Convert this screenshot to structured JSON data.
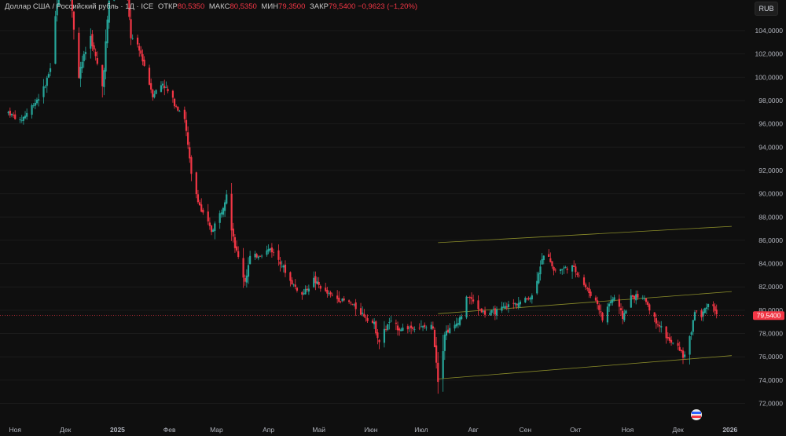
{
  "header": {
    "symbol": "Доллар США / Российский рубль · 1Д · ICE",
    "open_label": "ОТКР",
    "open_value": "80,5350",
    "high_label": "МАКС",
    "high_value": "80,5350",
    "low_label": "МИН",
    "low_value": "79,3500",
    "close_label": "ЗАКР",
    "close_value": "79,5400",
    "change": "−0,9623 (−1,20%)"
  },
  "currency_button": "RUB",
  "price_tag": "79,5400",
  "colors": {
    "up": "#26a69a",
    "down": "#f23645",
    "background": "#0f0f0f",
    "channel": "#8b8d2a"
  },
  "chart_data": {
    "type": "candlestick",
    "ylim": [
      71,
      105.5
    ],
    "y_ticks": [
      "72,0000",
      "74,0000",
      "76,0000",
      "78,0000",
      "80,0000",
      "82,0000",
      "84,0000",
      "86,0000",
      "88,0000",
      "90,0000",
      "92,0000",
      "94,0000",
      "96,0000",
      "98,0000",
      "100,0000",
      "102,0000",
      "104,0000"
    ],
    "x_ticks": [
      "Ноя",
      "Дек",
      "2025",
      "Фев",
      "Мар",
      "Апр",
      "Май",
      "Июн",
      "Июл",
      "Авг",
      "Сен",
      "Окт",
      "Ноя",
      "Дек",
      "2026"
    ],
    "last_price": 79.54,
    "close_path": [
      {
        "d": "2024-10-28",
        "c": 97.0
      },
      {
        "d": "2024-11-04",
        "c": 96.2
      },
      {
        "d": "2024-11-11",
        "c": 97.5
      },
      {
        "d": "2024-11-18",
        "c": 98.9
      },
      {
        "d": "2024-11-22",
        "c": 100.8
      },
      {
        "d": "2024-11-27",
        "c": 107.5
      },
      {
        "d": "2024-12-04",
        "c": 106.8
      },
      {
        "d": "2024-12-09",
        "c": 100.5
      },
      {
        "d": "2024-12-16",
        "c": 103.5
      },
      {
        "d": "2024-12-23",
        "c": 99.2
      },
      {
        "d": "2024-12-30",
        "c": 112.0
      },
      {
        "d": "2025-01-06",
        "c": 108.0
      },
      {
        "d": "2025-01-09",
        "c": 103.5
      },
      {
        "d": "2025-01-15",
        "c": 102.0
      },
      {
        "d": "2025-01-22",
        "c": 98.5
      },
      {
        "d": "2025-01-28",
        "c": 99.5
      },
      {
        "d": "2025-02-03",
        "c": 98.0
      },
      {
        "d": "2025-02-10",
        "c": 96.5
      },
      {
        "d": "2025-02-14",
        "c": 91.5
      },
      {
        "d": "2025-02-20",
        "c": 88.5
      },
      {
        "d": "2025-02-26",
        "c": 86.8
      },
      {
        "d": "2025-03-04",
        "c": 88.5
      },
      {
        "d": "2025-03-07",
        "c": 90.2
      },
      {
        "d": "2025-03-12",
        "c": 85.5
      },
      {
        "d": "2025-03-18",
        "c": 82.5
      },
      {
        "d": "2025-03-21",
        "c": 84.5
      },
      {
        "d": "2025-03-28",
        "c": 84.8
      },
      {
        "d": "2025-04-02",
        "c": 85.3
      },
      {
        "d": "2025-04-08",
        "c": 84.2
      },
      {
        "d": "2025-04-14",
        "c": 82.5
      },
      {
        "d": "2025-04-21",
        "c": 81.3
      },
      {
        "d": "2025-04-28",
        "c": 82.6
      },
      {
        "d": "2025-05-05",
        "c": 81.5
      },
      {
        "d": "2025-05-12",
        "c": 81.0
      },
      {
        "d": "2025-05-20",
        "c": 80.6
      },
      {
        "d": "2025-05-27",
        "c": 79.7
      },
      {
        "d": "2025-06-03",
        "c": 78.8
      },
      {
        "d": "2025-06-06",
        "c": 77.3
      },
      {
        "d": "2025-06-12",
        "c": 79.0
      },
      {
        "d": "2025-06-18",
        "c": 78.4
      },
      {
        "d": "2025-06-24",
        "c": 78.5
      },
      {
        "d": "2025-07-01",
        "c": 78.5
      },
      {
        "d": "2025-07-08",
        "c": 78.6
      },
      {
        "d": "2025-07-11",
        "c": 74.2
      },
      {
        "d": "2025-07-15",
        "c": 78.1
      },
      {
        "d": "2025-07-21",
        "c": 78.6
      },
      {
        "d": "2025-07-25",
        "c": 79.6
      },
      {
        "d": "2025-07-29",
        "c": 81.2
      },
      {
        "d": "2025-08-04",
        "c": 80.2
      },
      {
        "d": "2025-08-08",
        "c": 79.7
      },
      {
        "d": "2025-08-15",
        "c": 79.9
      },
      {
        "d": "2025-08-22",
        "c": 80.4
      },
      {
        "d": "2025-08-29",
        "c": 80.7
      },
      {
        "d": "2025-09-05",
        "c": 81.2
      },
      {
        "d": "2025-09-10",
        "c": 83.9
      },
      {
        "d": "2025-09-14",
        "c": 85.2
      },
      {
        "d": "2025-09-18",
        "c": 83.4
      },
      {
        "d": "2025-09-24",
        "c": 83.6
      },
      {
        "d": "2025-09-29",
        "c": 83.7
      },
      {
        "d": "2025-10-03",
        "c": 83.0
      },
      {
        "d": "2025-10-08",
        "c": 81.7
      },
      {
        "d": "2025-10-14",
        "c": 80.6
      },
      {
        "d": "2025-10-17",
        "c": 79.2
      },
      {
        "d": "2025-10-21",
        "c": 80.6
      },
      {
        "d": "2025-10-24",
        "c": 81.1
      },
      {
        "d": "2025-10-29",
        "c": 79.4
      },
      {
        "d": "2025-11-03",
        "c": 81.1
      },
      {
        "d": "2025-11-07",
        "c": 81.2
      },
      {
        "d": "2025-11-12",
        "c": 80.8
      },
      {
        "d": "2025-11-17",
        "c": 79.2
      },
      {
        "d": "2025-11-21",
        "c": 78.5
      },
      {
        "d": "2025-11-26",
        "c": 77.3
      },
      {
        "d": "2025-12-02",
        "c": 76.7
      },
      {
        "d": "2025-12-04",
        "c": 76.0
      },
      {
        "d": "2025-12-08",
        "c": 77.4
      },
      {
        "d": "2025-12-11",
        "c": 80.0
      },
      {
        "d": "2025-12-15",
        "c": 79.4
      },
      {
        "d": "2025-12-18",
        "c": 80.5
      },
      {
        "d": "2025-12-22",
        "c": 80.5
      },
      {
        "d": "2025-12-24",
        "c": 79.54
      }
    ],
    "channel": {
      "start": "2025-07-11",
      "end": "2026-01-02",
      "upper": [
        85.8,
        87.2
      ],
      "middle": [
        79.7,
        81.6
      ],
      "lower": [
        74.1,
        76.1
      ]
    }
  }
}
